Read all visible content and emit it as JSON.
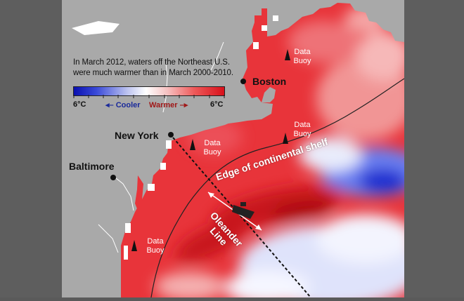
{
  "caption": "In March 2012, waters off the Northeast U.S. were much warmer than in March 2000-2010.",
  "legend": {
    "low_label": "6°C",
    "high_label": "6°C",
    "cooler_label": "Cooler",
    "warmer_label": "Warmer",
    "cool_color": "#0a10b0",
    "neutral_color": "#ffffff",
    "warm_color": "#d8101a"
  },
  "cities": {
    "boston": "Boston",
    "new_york": "New York",
    "baltimore": "Baltimore"
  },
  "buoys": {
    "gulf_of_maine": "Data Buoy",
    "shelf_east": "Data Buoy",
    "new_york_bight": "Data Buoy",
    "mid_atlantic": "Data Buoy"
  },
  "lines": {
    "shelf_edge": "Edge of continental shelf",
    "oleander": "Oleander Line"
  },
  "colors": {
    "land": "#a9a9a9",
    "frame": "#5e5e5e"
  }
}
